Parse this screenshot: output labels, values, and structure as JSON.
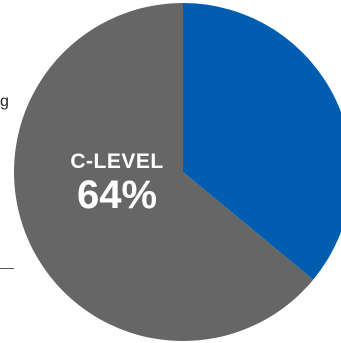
{
  "chart_data": {
    "type": "pie",
    "slices": [
      {
        "label": "",
        "value": 36,
        "color": "#005db0"
      },
      {
        "label": "C-LEVEL",
        "value": 64,
        "color": "#666666",
        "value_label": "64%"
      }
    ],
    "start_angle_deg": 0
  },
  "fragments": {
    "left_text": "g"
  }
}
